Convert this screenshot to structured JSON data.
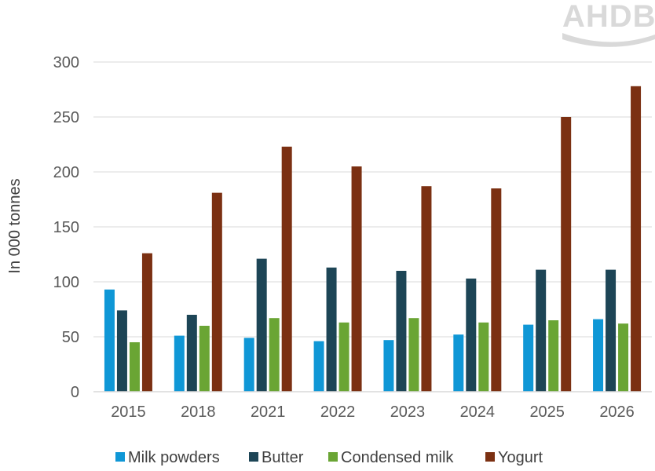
{
  "logo": {
    "text": "AHDB",
    "color": "#d9d9d9"
  },
  "chart_data": {
    "type": "bar",
    "title": "",
    "xlabel": "",
    "ylabel": "In 000 tonnes",
    "ylim": [
      0,
      300
    ],
    "yticks": [
      0,
      50,
      100,
      150,
      200,
      250,
      300
    ],
    "grid": true,
    "legend_position": "bottom",
    "categories": [
      "2015",
      "2018",
      "2021",
      "2022",
      "2023",
      "2024",
      "2025",
      "2026"
    ],
    "series": [
      {
        "name": "Milk powders",
        "color": "#0f97d6",
        "values": [
          93,
          51,
          49,
          46,
          47,
          52,
          61,
          66
        ]
      },
      {
        "name": "Butter",
        "color": "#1d4556",
        "values": [
          74,
          70,
          121,
          113,
          110,
          103,
          111,
          111
        ]
      },
      {
        "name": "Condensed milk",
        "color": "#6aa534",
        "values": [
          45,
          60,
          67,
          63,
          67,
          63,
          65,
          62
        ]
      },
      {
        "name": "Yogurt",
        "color": "#7b3012",
        "values": [
          126,
          181,
          223,
          205,
          187,
          185,
          250,
          278
        ]
      }
    ]
  }
}
